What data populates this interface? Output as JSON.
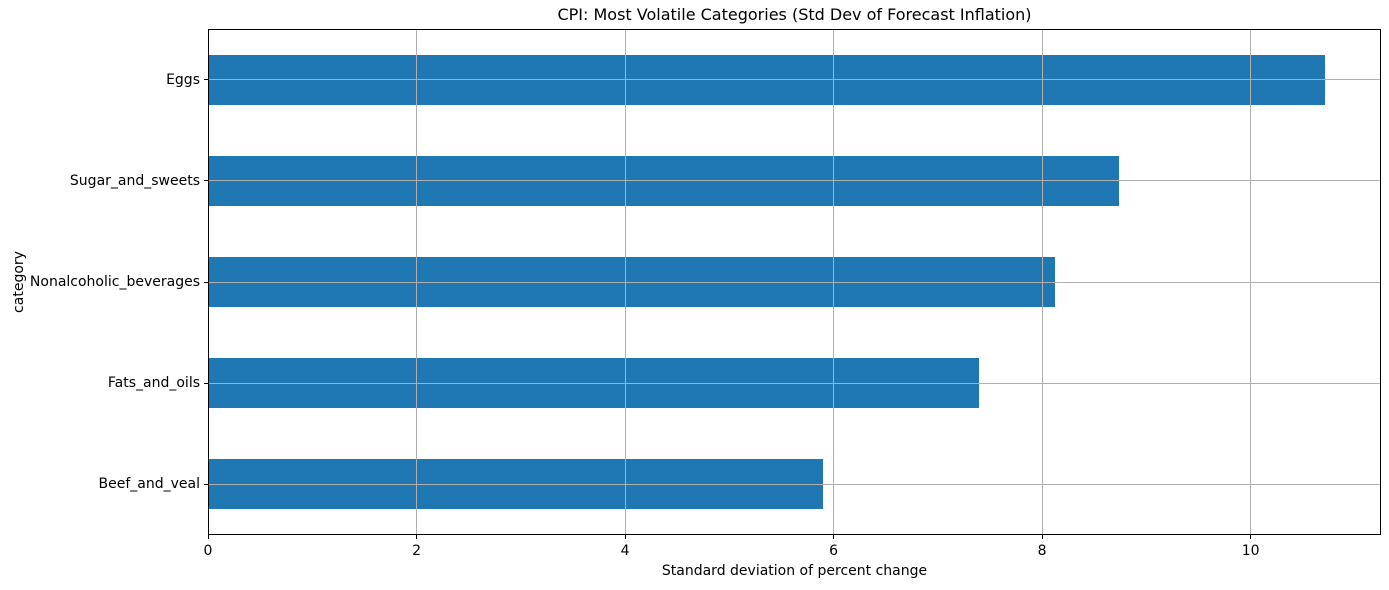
{
  "chart_data": {
    "type": "bar",
    "orientation": "horizontal",
    "title": "CPI: Most Volatile Categories (Std Dev of Forecast Inflation)",
    "xlabel": "Standard deviation of percent change",
    "ylabel": "category",
    "categories": [
      "Eggs",
      "Sugar_and_sweets",
      "Nonalcoholic_beverages",
      "Fats_and_oils",
      "Beef_and_veal"
    ],
    "values": [
      10.71,
      8.74,
      8.12,
      7.39,
      5.9
    ],
    "xticks": [
      0,
      2,
      4,
      6,
      8,
      10
    ],
    "xlim": [
      0,
      11.25
    ],
    "grid": true,
    "grid_over_bars": true,
    "legend_position": "none",
    "colors": {
      "bar": "#1f77b4",
      "grid": "#b0b0b0",
      "spine": "#000000",
      "text": "#000000",
      "background": "#ffffff"
    }
  }
}
